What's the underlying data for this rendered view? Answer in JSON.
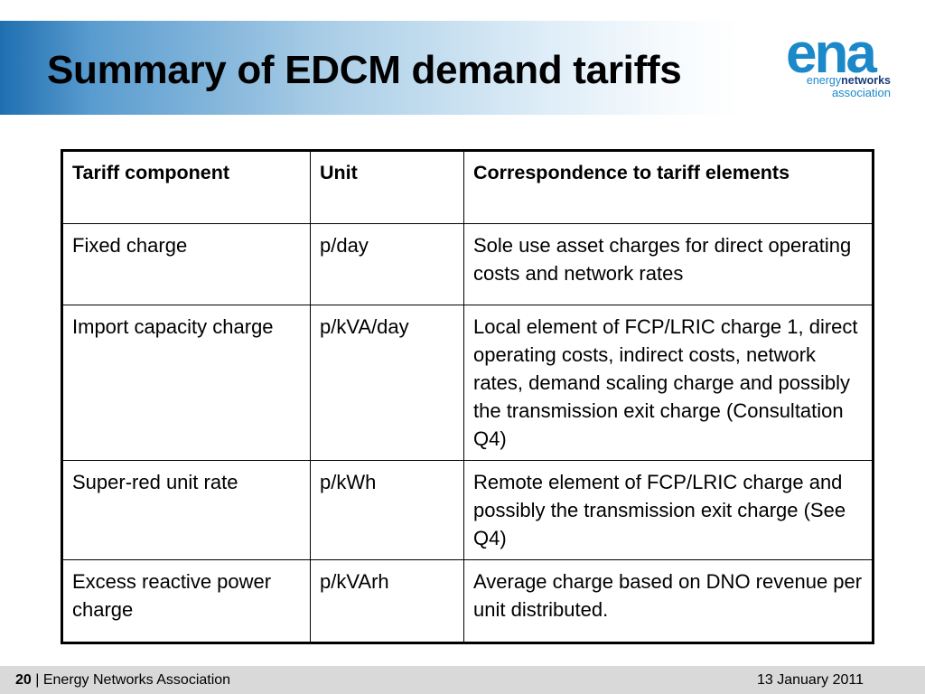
{
  "slide": {
    "title": "Summary of EDCM demand tariffs",
    "logo": {
      "mark": "ena",
      "line1_prefix": "energy",
      "line1_bold": "networks",
      "line2": "association"
    }
  },
  "table": {
    "headers": [
      "Tariff component",
      "Unit",
      "Correspondence to tariff elements"
    ],
    "rows": [
      {
        "component": "Fixed charge",
        "unit": "p/day",
        "correspondence": "Sole use asset charges for direct operating costs and network rates"
      },
      {
        "component": "Import capacity charge",
        "unit": "p/kVA/day",
        "correspondence": "Local element of FCP/LRIC charge 1, direct operating costs, indirect costs, network rates, demand scaling charge and possibly the transmission exit charge (Consultation Q4)"
      },
      {
        "component": "Super-red unit rate",
        "unit": "p/kWh",
        "correspondence": "Remote element of FCP/LRIC charge and possibly the transmission exit charge (See Q4)"
      },
      {
        "component": "Excess reactive power charge",
        "unit": "p/kVArh",
        "correspondence": "Average charge based on DNO revenue per unit distributed."
      }
    ]
  },
  "footer": {
    "page_number": "20",
    "separator": "|",
    "organisation": "Energy Networks Association",
    "date": "13 January 2011"
  }
}
